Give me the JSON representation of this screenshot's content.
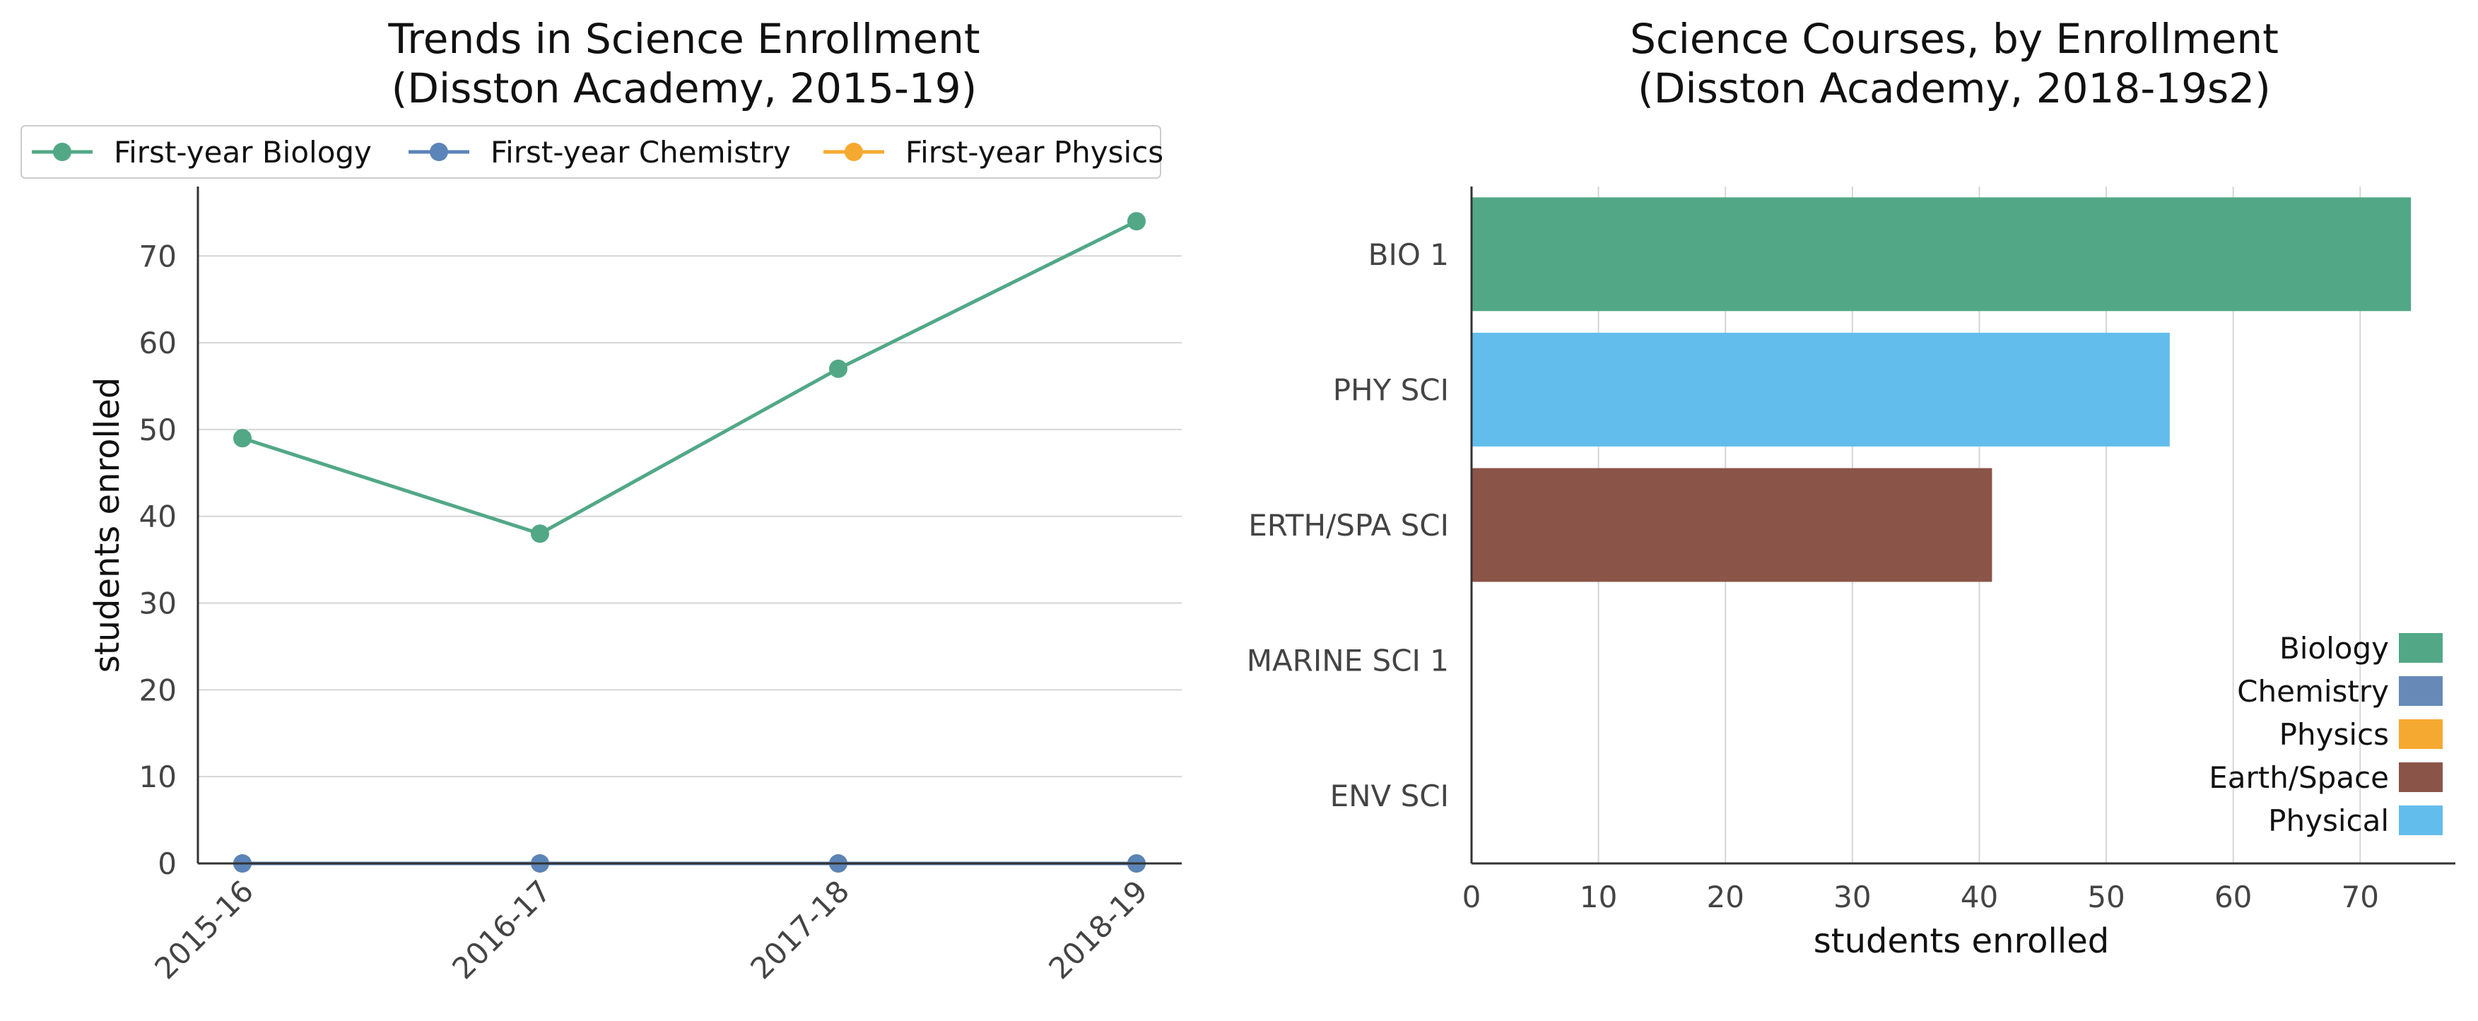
{
  "chart_data": [
    {
      "type": "line",
      "title": "Trends in Science Enrollment\n(Disston Academy, 2015-19)",
      "xlabel": "",
      "ylabel": "students enrolled",
      "categories": [
        "2015-16",
        "2016-17",
        "2017-18",
        "2018-19"
      ],
      "ylim": [
        0,
        78
      ],
      "yticks": [
        0,
        10,
        20,
        30,
        40,
        50,
        60,
        70
      ],
      "grid": "horizontal",
      "legend_position": "top",
      "series": [
        {
          "name": "First-year Biology",
          "color": "#52a886",
          "values": [
            49,
            38,
            57,
            74
          ]
        },
        {
          "name": "First-year Chemistry",
          "color": "#5b84b8",
          "values": [
            0,
            0,
            0,
            0
          ]
        },
        {
          "name": "First-year Physics",
          "color": "#f6a930",
          "values": [
            0,
            0,
            0,
            0
          ]
        }
      ]
    },
    {
      "type": "bar",
      "orientation": "horizontal",
      "title": "Science Courses, by Enrollment\n(Disston Academy, 2018-19s2)",
      "xlabel": "students enrolled",
      "ylabel": "",
      "categories": [
        "BIO 1",
        "PHY SCI",
        "ERTH/SPA SCI",
        "MARINE SCI 1",
        "ENV SCI"
      ],
      "values": [
        74,
        55,
        41,
        0,
        0
      ],
      "bar_colors": [
        "#52a886",
        "#62bdec",
        "#8b5449",
        null,
        null
      ],
      "xlim": [
        0,
        77.5
      ],
      "xticks": [
        0,
        10,
        20,
        30,
        40,
        50,
        60,
        70
      ],
      "grid": "vertical",
      "legend_position": "lower-right",
      "legend": [
        {
          "name": "Biology",
          "color": "#52a886"
        },
        {
          "name": "Chemistry",
          "color": "#6689b8"
        },
        {
          "name": "Physics",
          "color": "#f6a930"
        },
        {
          "name": "Earth/Space",
          "color": "#8b5449"
        },
        {
          "name": "Physical",
          "color": "#62bdec"
        }
      ]
    }
  ]
}
